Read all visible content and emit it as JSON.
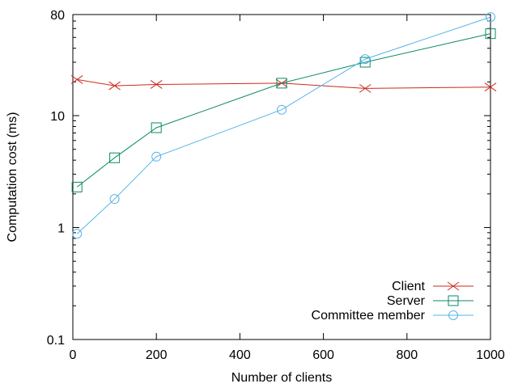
{
  "chart_data": {
    "type": "line",
    "title": "",
    "xlabel": "Number of clients",
    "ylabel": "Computation cost (ms)",
    "xlim": [
      0,
      1000
    ],
    "ylim": [
      0.1,
      80
    ],
    "yscale": "log",
    "xticks": [
      "0",
      "200",
      "400",
      "600",
      "800",
      "1000"
    ],
    "yticks": [
      "0.1",
      "1",
      "10",
      "80"
    ],
    "grid": false,
    "legend_position": "bottom-right",
    "series": [
      {
        "name": "Client",
        "color": "#cc2a1e",
        "marker": "x",
        "x": [
          10,
          100,
          200,
          500,
          700,
          1000
        ],
        "y": [
          21,
          18.5,
          19,
          19.5,
          17.5,
          18
        ]
      },
      {
        "name": "Server",
        "color": "#0a8a66",
        "marker": "square",
        "x": [
          10,
          100,
          200,
          500,
          700,
          1000
        ],
        "y": [
          2.3,
          4.2,
          7.8,
          19.5,
          30,
          54
        ]
      },
      {
        "name": "Committee member",
        "color": "#56b4e9",
        "marker": "circle",
        "x": [
          10,
          100,
          200,
          500,
          700,
          1000
        ],
        "y": [
          0.88,
          1.8,
          4.3,
          11.3,
          32,
          76
        ]
      }
    ]
  }
}
